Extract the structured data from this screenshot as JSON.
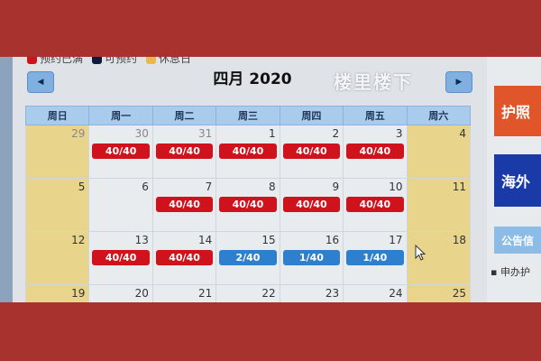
{
  "legend": [
    {
      "label": "预约已满",
      "color": "#d0121c"
    },
    {
      "label": "可预约",
      "color": "#0d1a3a"
    },
    {
      "label": "休息日",
      "color": "#e8b84a"
    }
  ],
  "calendar": {
    "title": "四月 2020",
    "prev_icon": "chevron-left-icon",
    "next_icon": "chevron-right-icon",
    "weekdays": [
      "周日",
      "周一",
      "周二",
      "周三",
      "周四",
      "周五",
      "周六"
    ],
    "weeks": [
      [
        {
          "d": "29",
          "o": 1,
          "w": 1
        },
        {
          "d": "30",
          "o": 1,
          "s": "40/40",
          "f": 1
        },
        {
          "d": "31",
          "o": 1,
          "s": "40/40",
          "f": 1
        },
        {
          "d": "1",
          "s": "40/40",
          "f": 1
        },
        {
          "d": "2",
          "s": "40/40",
          "f": 1
        },
        {
          "d": "3",
          "s": "40/40",
          "f": 1
        },
        {
          "d": "4",
          "w": 1
        }
      ],
      [
        {
          "d": "5",
          "w": 1
        },
        {
          "d": "6"
        },
        {
          "d": "7",
          "s": "40/40",
          "f": 1
        },
        {
          "d": "8",
          "s": "40/40",
          "f": 1
        },
        {
          "d": "9",
          "s": "40/40",
          "f": 1
        },
        {
          "d": "10",
          "s": "40/40",
          "f": 1
        },
        {
          "d": "11",
          "w": 1
        }
      ],
      [
        {
          "d": "12",
          "w": 1
        },
        {
          "d": "13",
          "s": "40/40",
          "f": 1
        },
        {
          "d": "14",
          "s": "40/40",
          "f": 1
        },
        {
          "d": "15",
          "s": "2/40"
        },
        {
          "d": "16",
          "s": "1/40"
        },
        {
          "d": "17",
          "s": "1/40"
        },
        {
          "d": "18",
          "w": 1
        }
      ],
      [
        {
          "d": "19",
          "w": 1
        },
        {
          "d": "20"
        },
        {
          "d": "21"
        },
        {
          "d": "22"
        },
        {
          "d": "23"
        },
        {
          "d": "24"
        },
        {
          "d": "25",
          "w": 1
        }
      ]
    ]
  },
  "watermark": "楼里楼下",
  "sidebar": {
    "passport": "护照",
    "overseas": "海外",
    "notice": "公告信",
    "list_item": "申办护"
  }
}
